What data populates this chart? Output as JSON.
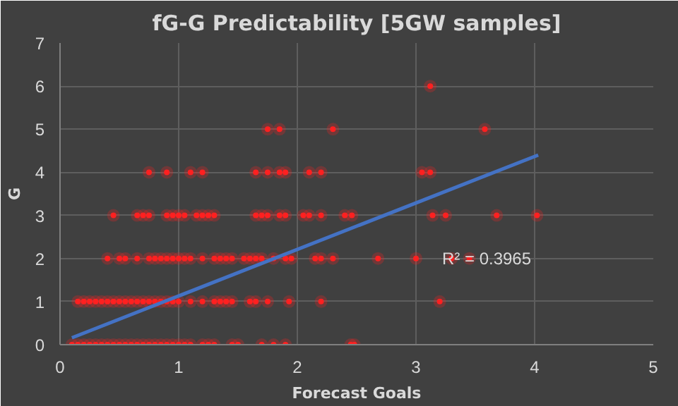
{
  "chart_data": {
    "type": "scatter",
    "title": "fG-G Predictability [5GW samples]",
    "xlabel": "Forecast Goals",
    "ylabel": "G",
    "xlim": [
      0,
      5
    ],
    "xticks": [
      0,
      1,
      2,
      3,
      4,
      5
    ],
    "ylim": [
      0,
      7
    ],
    "yticks": [
      0,
      1,
      2,
      3,
      4,
      5,
      6,
      7
    ],
    "grid": true,
    "series": [
      {
        "color": "#ff2020",
        "marker": "circle",
        "x": [
          0.1,
          0.15,
          0.2,
          0.25,
          0.3,
          0.35,
          0.4,
          0.45,
          0.5,
          0.55,
          0.6,
          0.65,
          0.7,
          0.75,
          0.8,
          0.85,
          0.9,
          0.95,
          1.0,
          1.05,
          1.1,
          1.2,
          1.25,
          1.3,
          1.45,
          1.5,
          1.7,
          1.8,
          1.9,
          2.45,
          2.48,
          0.15,
          0.2,
          0.25,
          0.3,
          0.35,
          0.4,
          0.45,
          0.5,
          0.55,
          0.6,
          0.65,
          0.7,
          0.75,
          0.8,
          0.85,
          0.9,
          0.95,
          1.0,
          1.1,
          1.2,
          1.3,
          1.35,
          1.4,
          1.45,
          1.6,
          1.65,
          1.75,
          1.93,
          2.2,
          3.2,
          0.4,
          0.5,
          0.55,
          0.65,
          0.75,
          0.8,
          0.85,
          0.9,
          0.95,
          1.0,
          1.05,
          1.1,
          1.2,
          1.3,
          1.35,
          1.4,
          1.45,
          1.55,
          1.6,
          1.65,
          1.7,
          1.8,
          1.9,
          1.95,
          2.15,
          2.2,
          2.3,
          2.68,
          3.0,
          3.3,
          3.45,
          0.45,
          0.65,
          0.7,
          0.75,
          0.9,
          0.95,
          1.0,
          1.05,
          1.15,
          1.2,
          1.25,
          1.3,
          1.65,
          1.7,
          1.75,
          1.85,
          1.9,
          2.05,
          2.1,
          2.2,
          2.4,
          2.46,
          3.14,
          3.25,
          3.68,
          4.02,
          0.75,
          0.9,
          1.1,
          1.2,
          1.65,
          1.75,
          1.85,
          1.9,
          2.1,
          2.2,
          3.05,
          3.12,
          1.75,
          1.85,
          2.3,
          3.58,
          3.12
        ],
        "values": [
          0,
          0,
          0,
          0,
          0,
          0,
          0,
          0,
          0,
          0,
          0,
          0,
          0,
          0,
          0,
          0,
          0,
          0,
          0,
          0,
          0,
          0,
          0,
          0,
          0,
          0,
          0,
          0,
          0,
          0,
          0,
          1,
          1,
          1,
          1,
          1,
          1,
          1,
          1,
          1,
          1,
          1,
          1,
          1,
          1,
          1,
          1,
          1,
          1,
          1,
          1,
          1,
          1,
          1,
          1,
          1,
          1,
          1,
          1,
          1,
          1,
          2,
          2,
          2,
          2,
          2,
          2,
          2,
          2,
          2,
          2,
          2,
          2,
          2,
          2,
          2,
          2,
          2,
          2,
          2,
          2,
          2,
          2,
          2,
          2,
          2,
          2,
          2,
          2,
          2,
          2,
          2,
          3,
          3,
          3,
          3,
          3,
          3,
          3,
          3,
          3,
          3,
          3,
          3,
          3,
          3,
          3,
          3,
          3,
          3,
          3,
          3,
          3,
          3,
          3,
          3,
          3,
          3,
          4,
          4,
          4,
          4,
          4,
          4,
          4,
          4,
          4,
          4,
          4,
          4,
          5,
          5,
          5,
          5,
          6
        ]
      },
      {
        "type": "line",
        "marker": "none",
        "color": "#4472c4",
        "x": [
          0.1,
          4.03
        ],
        "values": [
          0.16,
          4.4
        ]
      }
    ],
    "annotations": [
      {
        "text": "R² = 0.3965",
        "x": 3.22,
        "y": 2
      }
    ]
  }
}
